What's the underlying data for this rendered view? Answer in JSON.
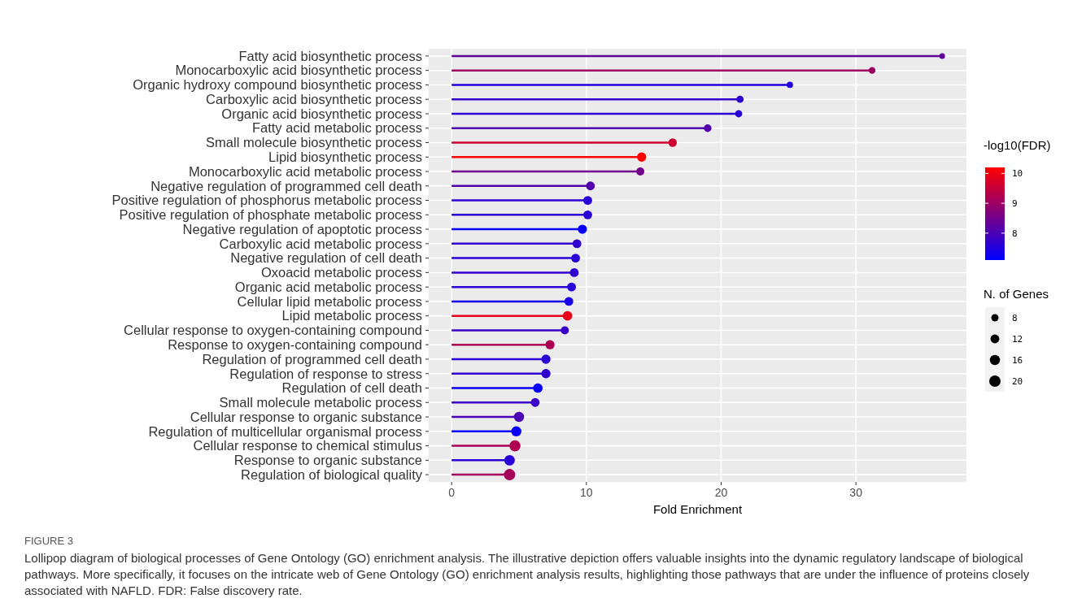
{
  "chart_data": {
    "type": "lollipop",
    "orientation": "horizontal",
    "categories": [
      "Fatty acid biosynthetic process",
      "Monocarboxylic acid biosynthetic process",
      "Organic hydroxy compound biosynthetic process",
      "Carboxylic acid biosynthetic process",
      "Organic acid biosynthetic process",
      "Fatty acid metabolic process",
      "Small molecule biosynthetic process",
      "Lipid biosynthetic process",
      "Monocarboxylic acid metabolic process",
      "Negative regulation of programmed cell death",
      "Positive regulation of phosphorus metabolic process",
      "Positive regulation of phosphate metabolic process",
      "Negative regulation of apoptotic process",
      "Carboxylic acid metabolic process",
      "Negative regulation of cell death",
      "Oxoacid metabolic process",
      "Organic acid metabolic process",
      "Cellular lipid metabolic process",
      "Lipid metabolic process",
      "Cellular response to oxygen-containing compound",
      "Response to oxygen-containing compound",
      "Regulation of programmed cell death",
      "Regulation of response to stress",
      "Regulation of cell death",
      "Small molecule metabolic process",
      "Cellular response to organic substance",
      "Regulation of multicellular organismal process",
      "Cellular response to chemical stimulus",
      "Response to organic substance",
      "Regulation of biological quality"
    ],
    "values": [
      36.4,
      31.2,
      25.1,
      21.4,
      21.3,
      19.0,
      16.4,
      14.1,
      14.0,
      10.3,
      10.1,
      10.1,
      9.7,
      9.3,
      9.2,
      9.1,
      8.9,
      8.7,
      8.6,
      8.4,
      7.3,
      7.0,
      7.0,
      6.4,
      6.2,
      5.0,
      4.8,
      4.7,
      4.3,
      4.3
    ],
    "cvalues": [
      8.3,
      9.0,
      7.5,
      7.7,
      7.6,
      8.1,
      9.6,
      10.2,
      8.5,
      8.1,
      7.6,
      7.6,
      7.2,
      7.7,
      7.6,
      7.7,
      7.6,
      7.4,
      9.9,
      7.8,
      9.2,
      7.6,
      7.7,
      7.2,
      7.8,
      8.0,
      7.2,
      9.2,
      7.6,
      9.1
    ],
    "sizes": [
      5,
      7,
      6,
      8,
      8,
      9,
      11,
      13,
      10,
      12,
      12,
      12,
      13,
      12,
      12,
      12,
      12,
      12,
      14,
      10,
      13,
      13,
      13,
      14,
      12,
      16,
      16,
      19,
      17,
      20
    ],
    "size_legend": [
      8,
      12,
      16,
      20
    ],
    "xlabel": "Fold Enrichment",
    "xlim": [
      -1.7,
      38.2
    ],
    "xticks": [
      0,
      10,
      20,
      30
    ],
    "clabel": "-log10(FDR)",
    "clim": [
      7.1,
      10.2
    ],
    "cticks": [
      8,
      9,
      10
    ],
    "legend_title": "N. of Genes",
    "grid": true,
    "marker": "circle",
    "annotations": [
      "FIGURE 3",
      "Lollipop diagram of biological processes of Gene Ontology (GO) enrichment analysis. The illustrative depiction offers valuable insights into the dynamic regulatory landscape of biological pathways. More specifically, it focuses on the intricate web of Gene Ontology (GO) enrichment analysis results, highlighting those pathways that are under the influence of proteins closely associated with NAFLD. FDR: False discovery rate."
    ]
  }
}
